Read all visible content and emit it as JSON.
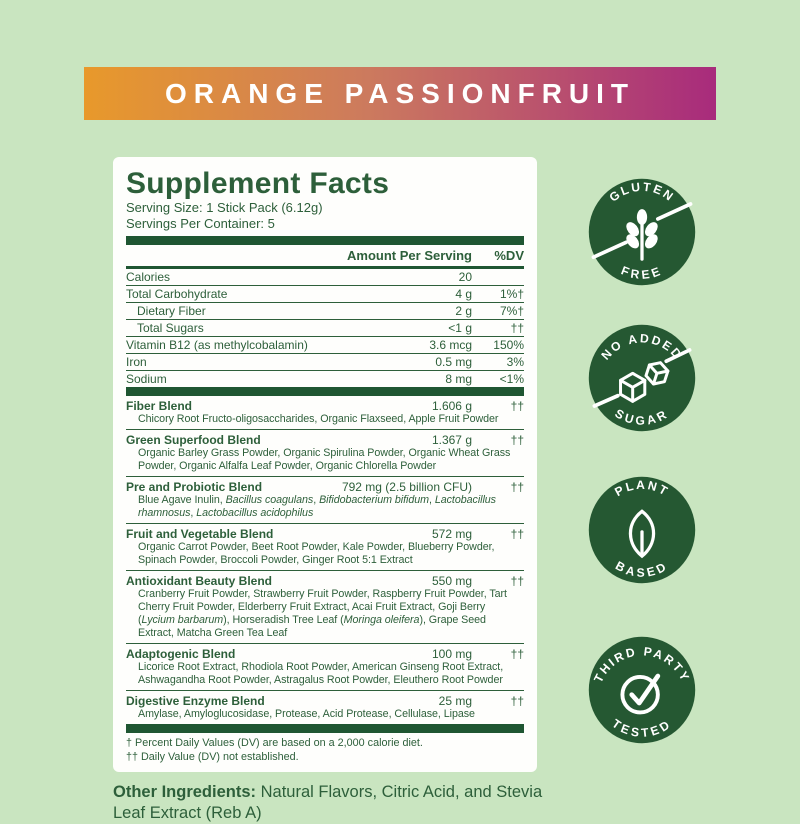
{
  "colors": {
    "background": "#c9e5c0",
    "banner_orange": "#e8992b",
    "banner_magenta": "#a82b7c",
    "label_green": "#2d5f3a",
    "bar_green": "#1f5632",
    "badge_green": "#255832",
    "panel_white": "#fefefc"
  },
  "banner": {
    "title": "ORANGE PASSIONFRUIT"
  },
  "label": {
    "title": "Supplement Facts",
    "serving_size": "Serving Size: 1 Stick Pack (6.12g)",
    "servings_per_container": "Servings Per Container: 5",
    "col_amount": "Amount Per Serving",
    "col_dv": "%DV",
    "nutrients": [
      {
        "name": "Calories",
        "amount": "20",
        "dv": "",
        "indent": false
      },
      {
        "name": "Total Carbohydrate",
        "amount": "4 g",
        "dv": "1%†",
        "indent": false
      },
      {
        "name": "Dietary Fiber",
        "amount": "2 g",
        "dv": "7%†",
        "indent": true
      },
      {
        "name": "Total Sugars",
        "amount": "<1 g",
        "dv": "††",
        "indent": true
      },
      {
        "name": "Vitamin B12 (as methylcobalamin)",
        "amount": "3.6 mcg",
        "dv": "150%",
        "indent": false
      },
      {
        "name": "Iron",
        "amount": "0.5 mg",
        "dv": "3%",
        "indent": false
      },
      {
        "name": "Sodium",
        "amount": "8 mg",
        "dv": "<1%",
        "indent": false
      }
    ],
    "blends": [
      {
        "name": "Fiber Blend",
        "amount": "1.606 g",
        "dv": "††",
        "ingredients": [
          {
            "t": "Chicory Root Fructo-oligosaccharides, Organic Flaxseed, Apple Fruit Powder",
            "i": false
          }
        ]
      },
      {
        "name": "Green Superfood Blend",
        "amount": "1.367 g",
        "dv": "††",
        "ingredients": [
          {
            "t": "Organic Barley Grass Powder, Organic Spirulina Powder, Organic Wheat Grass Powder, Organic Alfalfa Leaf Powder, Organic Chlorella Powder",
            "i": false
          }
        ]
      },
      {
        "name": "Pre and Probiotic Blend",
        "amount": "792 mg (2.5 billion CFU)",
        "dv": "††",
        "ingredients": [
          {
            "t": "Blue Agave Inulin, ",
            "i": false
          },
          {
            "t": "Bacillus coagulans",
            "i": true
          },
          {
            "t": ", ",
            "i": false
          },
          {
            "t": "Bifidobacterium bifidum",
            "i": true
          },
          {
            "t": ", ",
            "i": false
          },
          {
            "t": "Lactobacillus rhamnosus",
            "i": true
          },
          {
            "t": ", ",
            "i": false
          },
          {
            "t": "Lactobacillus acidophilus",
            "i": true
          }
        ]
      },
      {
        "name": "Fruit and Vegetable Blend",
        "amount": "572 mg",
        "dv": "††",
        "ingredients": [
          {
            "t": "Organic Carrot Powder, Beet Root Powder, Kale Powder, Blueberry Powder, Spinach Powder, Broccoli Powder, Ginger Root 5:1 Extract",
            "i": false
          }
        ]
      },
      {
        "name": "Antioxidant Beauty Blend",
        "amount": "550 mg",
        "dv": "††",
        "ingredients": [
          {
            "t": "Cranberry Fruit Powder, Strawberry Fruit Powder, Raspberry Fruit Powder, Tart Cherry Fruit Powder, Elderberry Fruit Extract, Acai Fruit Extract, Goji Berry (",
            "i": false
          },
          {
            "t": "Lycium barbarum",
            "i": true
          },
          {
            "t": "), Horseradish Tree Leaf (",
            "i": false
          },
          {
            "t": "Moringa oleifera",
            "i": true
          },
          {
            "t": "), Grape Seed Extract, Matcha Green Tea Leaf",
            "i": false
          }
        ]
      },
      {
        "name": "Adaptogenic Blend",
        "amount": "100 mg",
        "dv": "††",
        "ingredients": [
          {
            "t": "Licorice Root Extract, Rhodiola Root Powder, American Ginseng Root Extract, Ashwagandha Root Powder, Astragalus Root Powder, Eleuthero Root Powder",
            "i": false
          }
        ]
      },
      {
        "name": "Digestive Enzyme Blend",
        "amount": "25 mg",
        "dv": "††",
        "ingredients": [
          {
            "t": "Amylase, Amyloglucosidase, Protease, Acid Protease, Cellulase, Lipase",
            "i": false
          }
        ]
      }
    ],
    "footnotes": [
      "† Percent Daily Values (DV) are based on a 2,000 calorie diet.",
      "†† Daily Value (DV) not established."
    ]
  },
  "other_ingredients": {
    "label": "Other Ingredients:",
    "text": " Natural Flavors, Citric Acid, and Stevia Leaf Extract (Reb A)"
  },
  "badges": [
    {
      "top": "GLUTEN",
      "bottom": "FREE",
      "icon": "wheat-icon",
      "struck": true
    },
    {
      "top": "NO ADDED",
      "bottom": "SUGAR",
      "icon": "sugar-cubes-icon",
      "struck": true
    },
    {
      "top": "PLANT",
      "bottom": "BASED",
      "icon": "leaf-icon",
      "struck": false
    },
    {
      "top": "THIRD PARTY",
      "bottom": "TESTED",
      "icon": "check-icon",
      "struck": false
    }
  ]
}
